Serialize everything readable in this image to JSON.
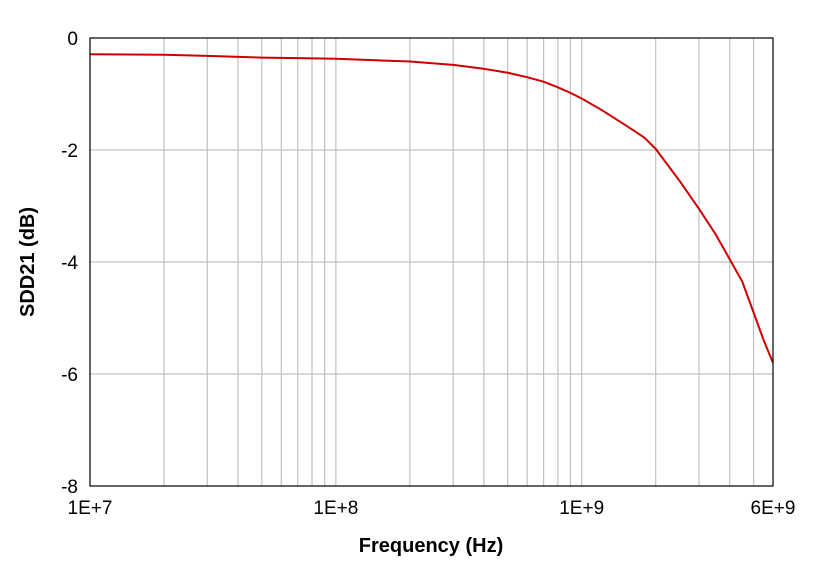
{
  "chart_data": {
    "type": "line",
    "xlabel": "Frequency (Hz)",
    "ylabel": "SDD21 (dB)",
    "x_scale": "log",
    "xlim": [
      10000000,
      6000000000
    ],
    "ylim": [
      -8,
      0
    ],
    "x_ticks": [
      {
        "value": 10000000,
        "label": "1E+7"
      },
      {
        "value": 100000000,
        "label": "1E+8"
      },
      {
        "value": 1000000000,
        "label": "1E+9"
      },
      {
        "value": 6000000000,
        "label": "6E+9"
      }
    ],
    "y_ticks": [
      {
        "value": 0,
        "label": "0"
      },
      {
        "value": -2,
        "label": "-2"
      },
      {
        "value": -4,
        "label": "-4"
      },
      {
        "value": -6,
        "label": "-6"
      },
      {
        "value": -8,
        "label": "-8"
      }
    ],
    "grid": true,
    "series": [
      {
        "color": "#cc0000",
        "points": [
          [
            10000000,
            -0.29
          ],
          [
            20000000,
            -0.3
          ],
          [
            30000000,
            -0.32
          ],
          [
            50000000,
            -0.35
          ],
          [
            70000000,
            -0.36
          ],
          [
            100000000,
            -0.37
          ],
          [
            150000000,
            -0.4
          ],
          [
            200000000,
            -0.42
          ],
          [
            300000000,
            -0.48
          ],
          [
            400000000,
            -0.55
          ],
          [
            500000000,
            -0.62
          ],
          [
            600000000,
            -0.7
          ],
          [
            700000000,
            -0.78
          ],
          [
            800000000,
            -0.88
          ],
          [
            900000000,
            -0.98
          ],
          [
            1000000000,
            -1.08
          ],
          [
            1200000000,
            -1.28
          ],
          [
            1500000000,
            -1.55
          ],
          [
            1800000000,
            -1.78
          ],
          [
            2000000000,
            -1.98
          ],
          [
            2500000000,
            -2.55
          ],
          [
            3000000000,
            -3.05
          ],
          [
            3500000000,
            -3.5
          ],
          [
            4000000000,
            -3.95
          ],
          [
            4500000000,
            -4.35
          ],
          [
            5000000000,
            -4.9
          ],
          [
            5500000000,
            -5.4
          ],
          [
            6000000000,
            -5.8
          ]
        ]
      }
    ]
  }
}
